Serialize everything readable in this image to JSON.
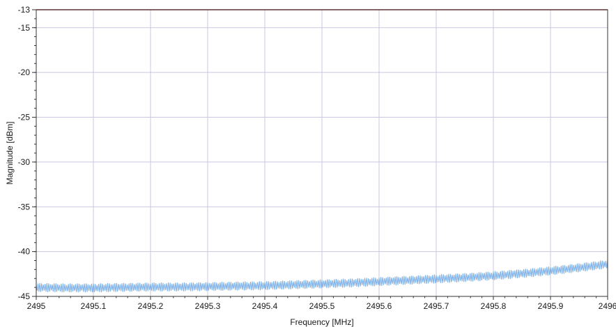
{
  "chart_data": {
    "type": "line",
    "title": "",
    "xlabel": "Frequency [MHz]",
    "ylabel": "Magnitude [dBm]",
    "xlim": [
      2495,
      2496
    ],
    "ylim": [
      -45,
      -13
    ],
    "grid": true,
    "x_ticks": [
      2495,
      2495.1,
      2495.2,
      2495.3,
      2495.4,
      2495.5,
      2495.6,
      2495.7,
      2495.8,
      2495.9,
      2496
    ],
    "x_tick_labels": [
      "2495",
      "2495.1",
      "2495.2",
      "2495.3",
      "2495.4",
      "2495.5",
      "2495.6",
      "2495.7",
      "2495.8",
      "2495.9",
      "2496"
    ],
    "y_ticks": [
      -13,
      -15,
      -20,
      -25,
      -30,
      -35,
      -40,
      -45
    ],
    "y_tick_labels": [
      "-13",
      "-15",
      "-20",
      "-25",
      "-30",
      "-35",
      "-40",
      "-45"
    ],
    "threshold_line": {
      "y": -13,
      "color": "#b03030"
    },
    "series": [
      {
        "color": "#7aaee8",
        "x": [
          2495,
          2495.05,
          2495.1,
          2495.15,
          2495.2,
          2495.25,
          2495.3,
          2495.35,
          2495.4,
          2495.45,
          2495.5,
          2495.55,
          2495.6,
          2495.65,
          2495.7,
          2495.75,
          2495.8,
          2495.85,
          2495.9,
          2495.95,
          2496
        ],
        "y": [
          -44.0,
          -44.05,
          -44.05,
          -44.0,
          -43.95,
          -43.95,
          -43.9,
          -43.85,
          -43.8,
          -43.7,
          -43.6,
          -43.5,
          -43.35,
          -43.2,
          -43.05,
          -42.9,
          -42.7,
          -42.45,
          -42.15,
          -41.8,
          -41.4
        ],
        "ripple_db": 0.5
      }
    ],
    "colors": {
      "grid": "#c8c8e0",
      "axis": "#333333"
    }
  }
}
